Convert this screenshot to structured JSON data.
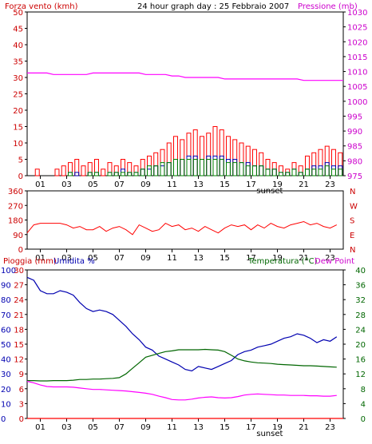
{
  "header": {
    "left_label": "Forza vento (kmh)",
    "title": "24 hour graph day : 25 Febbraio 2007",
    "right_label": "Pressione (mb)"
  },
  "colors": {
    "wind": "#ff0000",
    "wind_dir": "#ff0000",
    "pressure": "#ff00ff",
    "rain": "#ff0000",
    "humidity": "#0000b0",
    "temperature": "#006600",
    "dewpoint": "#ff00ff",
    "frame": "#000000",
    "green_axis": "#008000",
    "blue": "#0000ff"
  },
  "chart_data": [
    {
      "type": "bar",
      "title": "24 hour graph day : 25 Febbraio 2007",
      "y_left_label": "Forza vento (kmh)",
      "y_right_label": "Pressione (mb)",
      "y_left_ticks": [
        "0",
        "5",
        "10",
        "15",
        "20",
        "25",
        "30",
        "35",
        "40",
        "45",
        "50"
      ],
      "y_right_ticks": [
        "975",
        "980",
        "985",
        "990",
        "995",
        "1000",
        "1005",
        "1010",
        "1015",
        "1020",
        "1025",
        "1030"
      ],
      "x_ticks": [
        "01",
        "03",
        "05",
        "07",
        "09",
        "11",
        "13",
        "15",
        "17",
        "19",
        "21",
        "23"
      ],
      "x_marker": "sunset",
      "ylim_left": [
        0,
        50
      ],
      "ylim_right": [
        975,
        1030
      ],
      "hours": [
        0,
        0.5,
        1,
        1.5,
        2,
        2.5,
        3,
        3.5,
        4,
        4.5,
        5,
        5.5,
        6,
        6.5,
        7,
        7.5,
        8,
        8.5,
        9,
        9.5,
        10,
        10.5,
        11,
        11.5,
        12,
        12.5,
        13,
        13.5,
        14,
        14.5,
        15,
        15.5,
        16,
        16.5,
        17,
        17.5,
        18,
        18.5,
        19,
        19.5,
        20,
        20.5,
        21,
        21.5,
        22,
        22.5,
        23,
        23.5
      ],
      "series": [
        {
          "values": [
            0,
            2,
            0,
            0,
            2,
            3,
            4,
            5,
            3,
            4,
            5,
            2,
            4,
            3,
            5,
            4,
            3,
            5,
            6,
            7,
            8,
            10,
            12,
            11,
            13,
            14,
            12,
            13,
            15,
            14,
            12,
            11,
            10,
            9,
            8,
            7,
            5,
            4,
            3,
            2,
            4,
            3,
            6,
            7,
            8,
            9,
            8,
            7
          ]
        },
        {
          "values": [
            0,
            0,
            0,
            0,
            0,
            0,
            1,
            1,
            0,
            1,
            1,
            0,
            1,
            1,
            2,
            1,
            1,
            2,
            2,
            3,
            3,
            4,
            5,
            5,
            6,
            6,
            5,
            6,
            6,
            6,
            5,
            5,
            4,
            4,
            3,
            3,
            2,
            2,
            1,
            1,
            2,
            1,
            2,
            3,
            3,
            4,
            3,
            3
          ]
        },
        {
          "values": [
            0,
            0,
            0,
            0,
            0,
            0,
            1,
            0,
            0,
            1,
            1,
            0,
            1,
            1,
            1,
            1,
            1,
            2,
            3,
            3,
            4,
            4,
            5,
            5,
            5,
            5,
            5,
            5,
            5,
            5,
            4,
            4,
            4,
            3,
            3,
            3,
            2,
            2,
            1,
            1,
            2,
            1,
            2,
            2,
            2,
            3,
            2,
            2
          ]
        },
        {
          "values": [
            1009.5,
            1009.5,
            1009.5,
            1009.5,
            1009,
            1009,
            1009,
            1009,
            1009,
            1009,
            1009.5,
            1009.5,
            1009.5,
            1009.5,
            1009.5,
            1009.5,
            1009.5,
            1009.5,
            1009,
            1009,
            1009,
            1009,
            1008.5,
            1008.5,
            1008,
            1008,
            1008,
            1008,
            1008,
            1008,
            1007.5,
            1007.5,
            1007.5,
            1007.5,
            1007.5,
            1007.5,
            1007.5,
            1007.5,
            1007.5,
            1007.5,
            1007.5,
            1007.5,
            1007,
            1007,
            1007,
            1007,
            1007,
            1007
          ]
        }
      ]
    },
    {
      "type": "line",
      "y_right_letters": [
        "N",
        "W",
        "S",
        "E",
        "N"
      ],
      "y_ticks": [
        "0",
        "90",
        "180",
        "270",
        "360"
      ],
      "ylim": [
        0,
        360
      ],
      "x_ticks": [
        "01",
        "03",
        "05",
        "07",
        "09",
        "11",
        "13",
        "15",
        "17",
        "19",
        "21",
        "23"
      ],
      "hours": [
        0,
        0.5,
        1,
        1.5,
        2,
        2.5,
        3,
        3.5,
        4,
        4.5,
        5,
        5.5,
        6,
        6.5,
        7,
        7.5,
        8,
        8.5,
        9,
        9.5,
        10,
        10.5,
        11,
        11.5,
        12,
        12.5,
        13,
        13.5,
        14,
        14.5,
        15,
        15.5,
        16,
        16.5,
        17,
        17.5,
        18,
        18.5,
        19,
        19.5,
        20,
        20.5,
        21,
        21.5,
        22,
        22.5,
        23,
        23.5
      ],
      "series": [
        {
          "values": [
            100,
            150,
            160,
            160,
            160,
            160,
            150,
            130,
            140,
            120,
            120,
            140,
            110,
            130,
            140,
            120,
            90,
            150,
            130,
            110,
            120,
            160,
            140,
            150,
            120,
            130,
            110,
            140,
            120,
            100,
            130,
            150,
            140,
            150,
            120,
            150,
            130,
            160,
            140,
            130,
            150,
            160,
            170,
            150,
            160,
            140,
            130,
            150
          ]
        }
      ]
    },
    {
      "type": "line",
      "y_left_label_rain": "Pioggia (mm)",
      "y_left_label_humidity": "Umidita %",
      "y_right_label": "Temperatura (°C)",
      "y_right_label2": "Dew Point",
      "y_left_ticks": [
        "0",
        "10",
        "20",
        "30",
        "40",
        "50",
        "60",
        "70",
        "80",
        "90",
        "100"
      ],
      "y_left_ticks2": [
        "0",
        "3",
        "6",
        "9",
        "12",
        "15",
        "18",
        "21",
        "24",
        "27",
        "30"
      ],
      "y_right_ticks": [
        "0",
        "4",
        "8",
        "12",
        "16",
        "20",
        "24",
        "28",
        "32",
        "36",
        "40"
      ],
      "x_ticks": [
        "01",
        "03",
        "05",
        "07",
        "09",
        "11",
        "13",
        "15",
        "17",
        "19",
        "21",
        "23"
      ],
      "x_marker": "sunset",
      "ylim_left": [
        0,
        100
      ],
      "ylim_right": [
        0,
        40
      ],
      "hours": [
        0,
        0.5,
        1,
        1.5,
        2,
        2.5,
        3,
        3.5,
        4,
        4.5,
        5,
        5.5,
        6,
        6.5,
        7,
        7.5,
        8,
        8.5,
        9,
        9.5,
        10,
        10.5,
        11,
        11.5,
        12,
        12.5,
        13,
        13.5,
        14,
        14.5,
        15,
        15.5,
        16,
        16.5,
        17,
        17.5,
        18,
        18.5,
        19,
        19.5,
        20,
        20.5,
        21,
        21.5,
        22,
        22.5,
        23,
        23.5
      ],
      "series": [
        {
          "name": "Umidita %",
          "values": [
            95,
            93,
            86,
            84,
            84,
            86,
            85,
            83,
            78,
            74,
            72,
            73,
            72,
            70,
            66,
            62,
            57,
            53,
            48,
            46,
            42,
            40,
            38,
            36,
            33,
            32,
            35,
            34,
            33,
            35,
            37,
            39,
            43,
            45,
            46,
            48,
            49,
            50,
            52,
            54,
            55,
            57,
            56,
            54,
            51,
            53,
            52,
            55
          ]
        },
        {
          "name": "Temperatura (°C)",
          "values": [
            10.2,
            10.2,
            10.1,
            10.1,
            10.2,
            10.2,
            10.2,
            10.3,
            10.5,
            10.5,
            10.6,
            10.6,
            10.7,
            10.8,
            11,
            12,
            13.5,
            15,
            16.5,
            17,
            17.5,
            18,
            18.2,
            18.5,
            18.5,
            18.5,
            18.5,
            18.6,
            18.5,
            18.4,
            18,
            17,
            16,
            15.5,
            15.2,
            15,
            14.9,
            14.8,
            14.6,
            14.5,
            14.4,
            14.3,
            14.2,
            14.2,
            14.1,
            14,
            13.9,
            13.8
          ]
        },
        {
          "name": "Dew Point",
          "values": [
            10,
            9.6,
            9,
            8.6,
            8.5,
            8.5,
            8.5,
            8.4,
            8.2,
            8,
            7.8,
            7.8,
            7.7,
            7.6,
            7.5,
            7.4,
            7.2,
            7,
            6.8,
            6.5,
            6,
            5.6,
            5.1,
            5,
            5,
            5.2,
            5.5,
            5.7,
            5.8,
            5.6,
            5.5,
            5.6,
            5.9,
            6.3,
            6.5,
            6.6,
            6.5,
            6.4,
            6.3,
            6.3,
            6.2,
            6.2,
            6.2,
            6.1,
            6.1,
            6,
            6,
            6.2
          ]
        },
        {
          "name": "Pioggia (mm)",
          "values": [
            0,
            0,
            0,
            0,
            0,
            0,
            0,
            0,
            0,
            0,
            0,
            0,
            0,
            0,
            0,
            0,
            0,
            0,
            0,
            0,
            0,
            0,
            0,
            0,
            0,
            0,
            0,
            0,
            0,
            0,
            0,
            0,
            0,
            0,
            0,
            0,
            0,
            0,
            0,
            0,
            0,
            0,
            0,
            0,
            0,
            0,
            0,
            0
          ]
        }
      ]
    }
  ]
}
